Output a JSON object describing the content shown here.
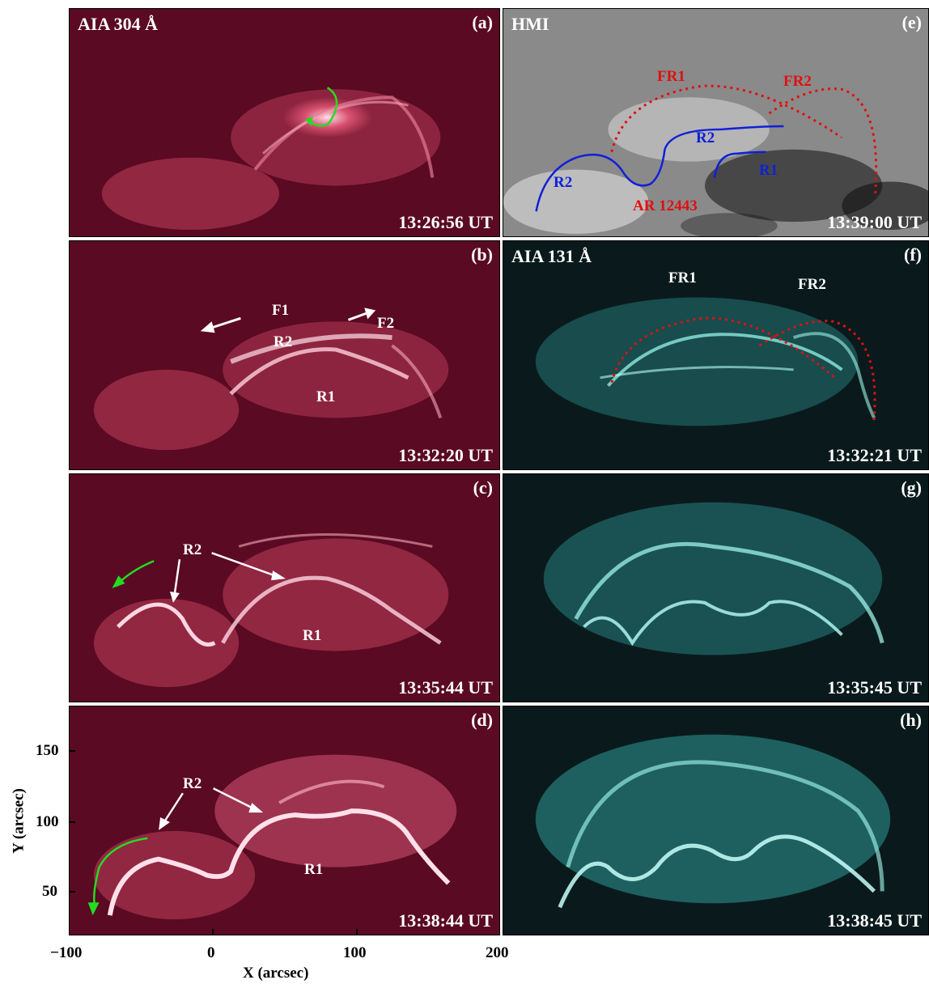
{
  "panels": {
    "a": {
      "label": "(a)",
      "title": "AIA 304 Å",
      "time": "13:26:56 UT"
    },
    "b": {
      "label": "(b)",
      "time": "13:32:20 UT"
    },
    "c": {
      "label": "(c)",
      "time": "13:35:44 UT"
    },
    "d": {
      "label": "(d)",
      "time": "13:38:44 UT"
    },
    "e": {
      "label": "(e)",
      "title": "HMI",
      "time": "13:39:00 UT"
    },
    "f": {
      "label": "(f)",
      "title": "AIA 131 Å",
      "time": "13:32:21 UT"
    },
    "g": {
      "label": "(g)",
      "time": "13:35:45 UT"
    },
    "h": {
      "label": "(h)",
      "time": "13:38:45 UT"
    }
  },
  "annotations": {
    "b_f1": "F1",
    "b_f2": "F2",
    "b_r2": "R2",
    "b_r1": "R1",
    "c_r2": "R2",
    "c_r1": "R1",
    "d_r2": "R2",
    "d_r1": "R1",
    "e_fr1": "FR1",
    "e_fr2": "FR2",
    "e_r2_left": "R2",
    "e_r2_mid": "R2",
    "e_r1": "R1",
    "e_ar": "AR 12443",
    "f_fr1": "FR1",
    "f_fr2": "FR2"
  },
  "axes": {
    "xlabel": "X (arcsec)",
    "ylabel": "Y (arcsec)",
    "xticks": [
      "−100",
      "0",
      "100",
      "200"
    ],
    "yticks": [
      "150",
      "100",
      "50"
    ]
  },
  "colors": {
    "aia304_bg": "#5a0a22",
    "aia304_bright": "#ffd6e2",
    "aia131_bg": "#0a1a1c",
    "aia131_bright": "#b8fff8",
    "hmi_bg": "#8a8a8a",
    "fluxrope": "#e01010",
    "ribbon_line": "#1020d8",
    "arrow_green": "#22dd22",
    "arrow_white": "#ffffff"
  }
}
